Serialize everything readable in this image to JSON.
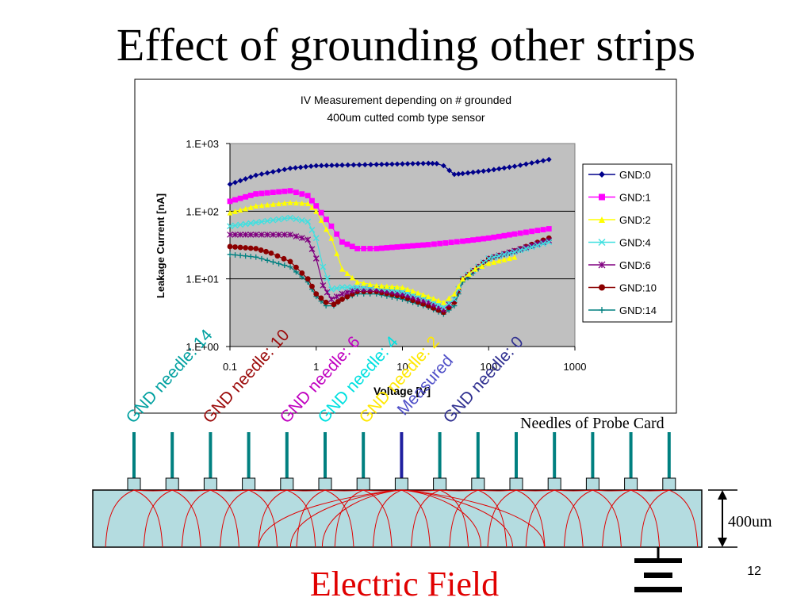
{
  "slide": {
    "title": "Effect of grounding other strips",
    "page_number": "12",
    "electric_field_label": "Electric Field",
    "needles_label": "Needles of Probe Card",
    "thickness_label": "400um"
  },
  "needle_annotations": [
    {
      "text": "GND needle: 14",
      "color": "#00A0A0"
    },
    {
      "text": "GND needle: 10",
      "color": "#9B0A0A"
    },
    {
      "text": "GND needle: 6",
      "color": "#C000C0"
    },
    {
      "text": "GND needle: 4",
      "color": "#00E0E0"
    },
    {
      "text": "GND needle: 2",
      "color": "#FFE800"
    },
    {
      "text": "Measured",
      "color": "#5050C8"
    },
    {
      "text": "GND needle: 0",
      "color": "#303090"
    }
  ],
  "colors": {
    "plot_bg": "#C0C0C0",
    "sensor_fill": "#B4DCE0",
    "needle": "#008080",
    "measured_needle": "#2020A0",
    "field_line": "#E00000",
    "electric_field_text": "#E00000"
  },
  "chart_data": {
    "type": "line",
    "title": "IV Measurement depending on # grounded",
    "subtitle": "400um cutted comb type sensor",
    "xlabel": "Voltage [V]",
    "ylabel": "Leakage Current [nA]",
    "xscale": "log",
    "yscale": "log",
    "xlim": [
      0.1,
      1000
    ],
    "ylim": [
      1,
      1000
    ],
    "x_ticks": [
      "0.1",
      "1",
      "10",
      "100",
      "1000"
    ],
    "y_ticks": [
      "1.E+00",
      "1.E+01",
      "1.E+02",
      "1.E+03"
    ],
    "grid": "horizontal major",
    "legend_position": "right",
    "series": [
      {
        "name": "GND:0",
        "color": "#00008B",
        "marker": "diamond",
        "x": [
          0.1,
          0.2,
          0.5,
          1,
          2,
          5,
          10,
          20,
          25,
          30,
          35,
          40,
          50,
          100,
          200,
          500
        ],
        "y": [
          250,
          340,
          430,
          470,
          480,
          490,
          500,
          510,
          505,
          470,
          400,
          350,
          360,
          400,
          460,
          580
        ]
      },
      {
        "name": "GND:1",
        "color": "#FF00FF",
        "marker": "square",
        "x": [
          0.1,
          0.2,
          0.5,
          0.8,
          1,
          1.5,
          2,
          3,
          5,
          10,
          20,
          50,
          100,
          200,
          500
        ],
        "y": [
          140,
          180,
          200,
          170,
          120,
          60,
          35,
          28,
          28,
          30,
          32,
          36,
          40,
          46,
          55
        ]
      },
      {
        "name": "GND:2",
        "color": "#FFFF00",
        "marker": "triangle",
        "x": [
          0.1,
          0.2,
          0.5,
          0.8,
          1,
          1.5,
          2,
          3,
          5,
          10,
          20,
          30,
          40,
          50,
          70,
          100,
          200
        ],
        "y": [
          95,
          120,
          135,
          130,
          100,
          40,
          14,
          9,
          8,
          7.5,
          5.5,
          4.5,
          6,
          10,
          14,
          17,
          21
        ]
      },
      {
        "name": "GND:4",
        "color": "#40E0E0",
        "marker": "x",
        "x": [
          0.1,
          0.2,
          0.5,
          0.8,
          1,
          1.2,
          1.5,
          2,
          3,
          5,
          10,
          20,
          30,
          40,
          50,
          100,
          200,
          500
        ],
        "y": [
          60,
          68,
          80,
          70,
          40,
          15,
          7,
          7.5,
          7.5,
          7.5,
          6.5,
          5,
          3.8,
          5,
          10,
          20,
          25,
          35
        ]
      },
      {
        "name": "GND:6",
        "color": "#800080",
        "marker": "star",
        "x": [
          0.1,
          0.2,
          0.5,
          0.8,
          1,
          1.2,
          1.5,
          2,
          3,
          5,
          10,
          20,
          30,
          40,
          50,
          100,
          200,
          500
        ],
        "y": [
          45,
          45,
          45,
          38,
          20,
          8,
          5,
          6,
          7,
          7,
          6,
          4.5,
          3.5,
          5,
          10,
          20,
          26,
          37
        ]
      },
      {
        "name": "GND:10",
        "color": "#8B0000",
        "marker": "circle",
        "x": [
          0.1,
          0.2,
          0.3,
          0.5,
          0.8,
          1,
          1.3,
          1.6,
          2,
          3,
          5,
          10,
          20,
          30,
          40,
          50,
          100,
          200,
          500
        ],
        "y": [
          30,
          28,
          24,
          18,
          10,
          6,
          4.5,
          4.2,
          5,
          6.5,
          6.5,
          5.5,
          4,
          3.2,
          4.5,
          10,
          20,
          26,
          40
        ]
      },
      {
        "name": "GND:14",
        "color": "#008080",
        "marker": "plus",
        "x": [
          0.1,
          0.2,
          0.5,
          0.8,
          1,
          1.3,
          1.6,
          2,
          3,
          5,
          10,
          20,
          30,
          40,
          50,
          100,
          200,
          500
        ],
        "y": [
          23,
          21,
          15,
          9,
          5.5,
          4,
          4,
          5,
          6,
          6,
          5,
          3.8,
          3,
          4,
          9,
          19,
          25,
          37
        ]
      }
    ]
  }
}
